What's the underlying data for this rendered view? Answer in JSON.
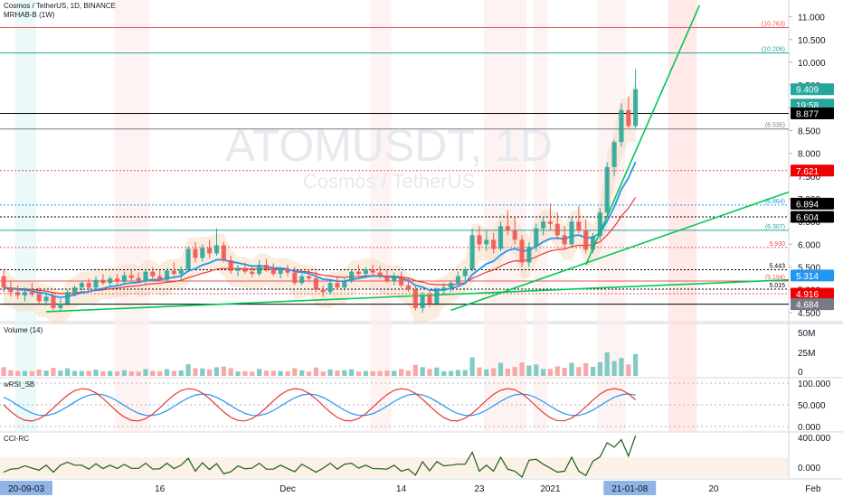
{
  "header": {
    "symbol_line": "Cosmos / TetherUS, 1D, BINANCE",
    "indicator_line": "MRHAB-B (1W)"
  },
  "watermark": {
    "ticker": "ATOMUSDT, 1D",
    "name": "Cosmos / TetherUS"
  },
  "colors": {
    "up": "#26a69a",
    "down": "#ef5350",
    "line_green": "#00c853",
    "ema_blue": "#2196f3",
    "ema_red": "#e53935",
    "cloud": "#f5d6b8",
    "axis_text": "#131722",
    "grid": "#e0e3eb"
  },
  "price_axis": {
    "ticks": [
      "11.000",
      "10.500",
      "10.000",
      "9.500",
      "9.000",
      "8.500",
      "8.000",
      "7.500",
      "7.000",
      "6.500",
      "6.000",
      "5.500",
      "5.000",
      "4.500"
    ],
    "badges": [
      {
        "label": "9.409",
        "value": 9.409,
        "bg": "#26a69a",
        "fg": "#ffffff"
      },
      {
        "label": "19:58",
        "value": 9.07,
        "bg": "#26a69a",
        "fg": "#ffffff"
      },
      {
        "label": "8.877",
        "value": 8.877,
        "bg": "#000000",
        "fg": "#ffffff"
      },
      {
        "label": "7.621",
        "value": 7.621,
        "bg": "#ef0000",
        "fg": "#ffffff"
      },
      {
        "label": "6.894",
        "value": 6.894,
        "bg": "#000000",
        "fg": "#ffffff"
      },
      {
        "label": "6.604",
        "value": 6.604,
        "bg": "#000000",
        "fg": "#ffffff"
      },
      {
        "label": "5.314",
        "value": 5.314,
        "bg": "#2196f3",
        "fg": "#ffffff"
      },
      {
        "label": "4.916",
        "value": 4.916,
        "bg": "#ef0000",
        "fg": "#ffffff"
      },
      {
        "label": "4.684",
        "value": 4.684,
        "bg": "#787b86",
        "fg": "#ffffff"
      }
    ]
  },
  "level_lines": [
    {
      "label": "(10.763)",
      "value": 10.763,
      "color": "#ef5350",
      "style": "solid"
    },
    {
      "label": "(10.206)",
      "value": 10.206,
      "color": "#26a69a",
      "style": "solid"
    },
    {
      "label": "",
      "value": 8.877,
      "color": "#000000",
      "style": "solid"
    },
    {
      "label": "(8.535)",
      "value": 8.535,
      "color": "#787b86",
      "style": "solid"
    },
    {
      "label": "",
      "value": 7.621,
      "color": "#ef5350",
      "style": "dotted"
    },
    {
      "label": "(6.864)",
      "value": 6.864,
      "color": "#2196f3",
      "style": "dotted"
    },
    {
      "label": "",
      "value": 6.604,
      "color": "#000000",
      "style": "dotted"
    },
    {
      "label": "(6.307)",
      "value": 6.307,
      "color": "#26a69a",
      "style": "solid"
    },
    {
      "label": "5.930",
      "value": 5.93,
      "color": "#ef5350",
      "style": "dotted"
    },
    {
      "label": "5.443",
      "value": 5.443,
      "color": "#000000",
      "style": "dotted"
    },
    {
      "label": "(5.194)",
      "value": 5.194,
      "color": "#ef5350",
      "style": "solid"
    },
    {
      "label": "5.015",
      "value": 5.015,
      "color": "#000000",
      "style": "dotted"
    },
    {
      "label": "",
      "value": 4.916,
      "color": "#ef5350",
      "style": "dotted"
    },
    {
      "label": "",
      "value": 4.684,
      "color": "#000000",
      "style": "solid"
    }
  ],
  "time_axis": [
    {
      "label": "20-09-03",
      "bar": 0,
      "boxed": true
    },
    {
      "label": "16",
      "bar": 22,
      "boxed": false
    },
    {
      "label": "Dec",
      "bar": 40,
      "boxed": false
    },
    {
      "label": "14",
      "bar": 56,
      "boxed": false
    },
    {
      "label": "23",
      "bar": 67,
      "boxed": false
    },
    {
      "label": "2021",
      "bar": 77,
      "boxed": false
    },
    {
      "label": "21-01-08",
      "bar": 85,
      "boxed": true
    },
    {
      "label": "20",
      "bar": 100,
      "boxed": false
    },
    {
      "label": "Feb",
      "bar": 114,
      "boxed": false
    }
  ],
  "panes": {
    "volume": {
      "title": "Volume (14)",
      "ticks": [
        "50M",
        "25M",
        "0"
      ]
    },
    "wrsi": {
      "title": "wRSI_SB",
      "ticks": [
        "100.000",
        "50.000",
        "0.000"
      ]
    },
    "cci": {
      "title": "CCI-RC",
      "ticks": [
        "400.000",
        "0.000"
      ]
    }
  },
  "chart_data": {
    "type": "candlestick",
    "title": "Cosmos / TetherUS, 1D, BINANCE",
    "ylim": [
      4.3,
      11.25
    ],
    "candles": [
      [
        5.3,
        5.45,
        4.95,
        5.05
      ],
      [
        5.05,
        5.2,
        4.85,
        4.95
      ],
      [
        4.95,
        5.1,
        4.8,
        4.88
      ],
      [
        4.88,
        5.05,
        4.75,
        4.95
      ],
      [
        4.95,
        5.15,
        4.85,
        4.9
      ],
      [
        4.9,
        5.05,
        4.7,
        4.75
      ],
      [
        4.75,
        4.95,
        4.65,
        4.85
      ],
      [
        4.85,
        4.95,
        4.55,
        4.6
      ],
      [
        4.6,
        4.8,
        4.52,
        4.7
      ],
      [
        4.7,
        5.0,
        4.65,
        4.95
      ],
      [
        4.95,
        5.1,
        4.85,
        5.05
      ],
      [
        5.05,
        5.2,
        4.95,
        5.15
      ],
      [
        5.15,
        5.25,
        4.98,
        5.05
      ],
      [
        5.05,
        5.3,
        5.0,
        5.22
      ],
      [
        5.22,
        5.35,
        5.1,
        5.15
      ],
      [
        5.15,
        5.3,
        5.05,
        5.25
      ],
      [
        5.25,
        5.35,
        5.1,
        5.18
      ],
      [
        5.18,
        5.4,
        5.12,
        5.32
      ],
      [
        5.32,
        5.45,
        5.2,
        5.26
      ],
      [
        5.26,
        5.38,
        5.15,
        5.2
      ],
      [
        5.2,
        5.45,
        5.12,
        5.4
      ],
      [
        5.4,
        5.5,
        5.25,
        5.3
      ],
      [
        5.3,
        5.42,
        5.18,
        5.22
      ],
      [
        5.22,
        5.48,
        5.15,
        5.42
      ],
      [
        5.42,
        5.6,
        5.3,
        5.35
      ],
      [
        5.35,
        5.52,
        5.2,
        5.45
      ],
      [
        5.45,
        5.95,
        5.4,
        5.9
      ],
      [
        5.9,
        6.05,
        5.6,
        5.7
      ],
      [
        5.7,
        6.0,
        5.62,
        5.92
      ],
      [
        5.92,
        6.1,
        5.7,
        5.8
      ],
      [
        5.8,
        6.35,
        5.75,
        5.98
      ],
      [
        5.98,
        6.05,
        5.6,
        5.65
      ],
      [
        5.65,
        5.75,
        5.35,
        5.42
      ],
      [
        5.42,
        5.55,
        5.3,
        5.48
      ],
      [
        5.48,
        5.6,
        5.35,
        5.4
      ],
      [
        5.4,
        5.52,
        5.28,
        5.35
      ],
      [
        5.35,
        5.65,
        5.3,
        5.55
      ],
      [
        5.55,
        5.68,
        5.4,
        5.45
      ],
      [
        5.45,
        5.58,
        5.3,
        5.35
      ],
      [
        5.35,
        5.5,
        5.25,
        5.45
      ],
      [
        5.45,
        5.55,
        5.3,
        5.38
      ],
      [
        5.38,
        5.5,
        5.1,
        5.15
      ],
      [
        5.15,
        5.35,
        5.1,
        5.3
      ],
      [
        5.3,
        5.45,
        5.2,
        5.25
      ],
      [
        5.25,
        5.4,
        4.95,
        5.0
      ],
      [
        5.0,
        5.1,
        4.85,
        4.95
      ],
      [
        4.95,
        5.2,
        4.9,
        5.15
      ],
      [
        5.15,
        5.3,
        5.0,
        5.05
      ],
      [
        5.05,
        5.25,
        4.98,
        5.2
      ],
      [
        5.2,
        5.45,
        5.15,
        5.4
      ],
      [
        5.4,
        5.55,
        5.28,
        5.35
      ],
      [
        5.35,
        5.5,
        5.25,
        5.45
      ],
      [
        5.45,
        5.55,
        5.3,
        5.38
      ],
      [
        5.38,
        5.52,
        5.25,
        5.3
      ],
      [
        5.3,
        5.45,
        5.15,
        5.2
      ],
      [
        5.2,
        5.38,
        5.1,
        5.3
      ],
      [
        5.3,
        5.4,
        5.05,
        5.1
      ],
      [
        5.1,
        5.25,
        4.95,
        5.0
      ],
      [
        5.0,
        5.1,
        4.55,
        4.6
      ],
      [
        4.6,
        4.95,
        4.5,
        4.88
      ],
      [
        4.88,
        5.0,
        4.62,
        4.7
      ],
      [
        4.7,
        5.05,
        4.65,
        4.98
      ],
      [
        4.98,
        5.15,
        4.9,
        5.05
      ],
      [
        5.05,
        5.2,
        4.95,
        5.15
      ],
      [
        5.15,
        5.4,
        5.1,
        5.3
      ],
      [
        5.3,
        5.5,
        5.2,
        5.45
      ],
      [
        5.45,
        6.35,
        5.4,
        6.2
      ],
      [
        6.2,
        6.4,
        5.85,
        6.0
      ],
      [
        6.0,
        6.3,
        5.85,
        6.1
      ],
      [
        6.1,
        6.25,
        5.8,
        5.9
      ],
      [
        5.9,
        6.5,
        5.85,
        6.4
      ],
      [
        6.4,
        6.75,
        6.2,
        6.3
      ],
      [
        6.3,
        6.6,
        6.0,
        6.1
      ],
      [
        6.1,
        6.2,
        5.5,
        5.6
      ],
      [
        5.6,
        6.05,
        5.5,
        5.95
      ],
      [
        5.95,
        6.45,
        5.85,
        6.35
      ],
      [
        6.35,
        6.62,
        6.2,
        6.5
      ],
      [
        6.5,
        6.9,
        6.3,
        6.45
      ],
      [
        6.45,
        6.7,
        6.1,
        6.2
      ],
      [
        6.2,
        6.4,
        5.9,
        6.0
      ],
      [
        6.0,
        6.6,
        5.95,
        6.5
      ],
      [
        6.5,
        6.85,
        6.25,
        6.3
      ],
      [
        6.3,
        6.55,
        5.8,
        5.88
      ],
      [
        5.88,
        6.25,
        5.8,
        6.18
      ],
      [
        6.18,
        6.8,
        6.1,
        6.7
      ],
      [
        6.7,
        7.8,
        6.6,
        7.7
      ],
      [
        7.7,
        8.3,
        7.5,
        8.25
      ],
      [
        8.25,
        9.1,
        8.15,
        8.95
      ],
      [
        8.95,
        9.25,
        8.55,
        8.6
      ],
      [
        8.6,
        9.85,
        8.55,
        9.41
      ]
    ]
  }
}
